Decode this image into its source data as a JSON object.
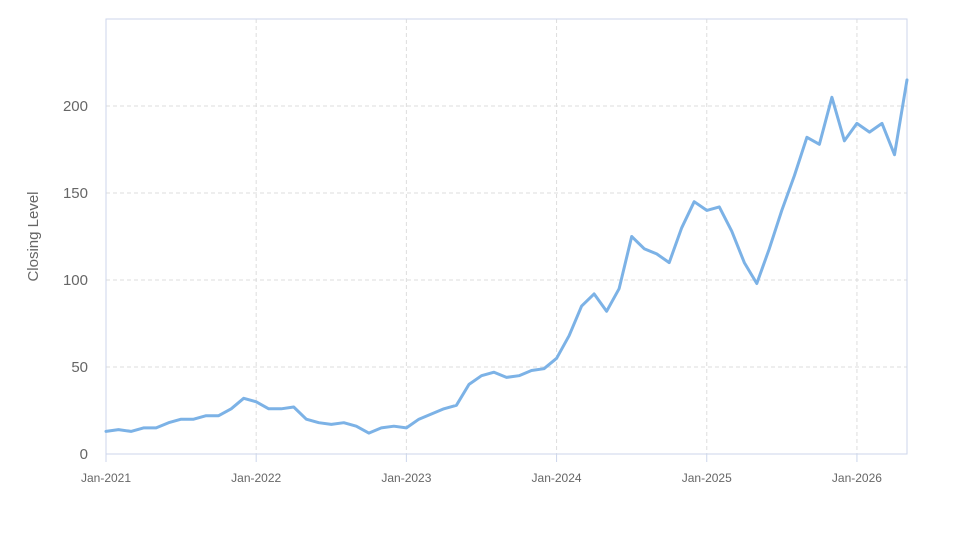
{
  "chart_data": {
    "type": "line",
    "title": "",
    "xlabel": "",
    "ylabel": "Closing Level",
    "x_ticks": [
      "Jan-2021",
      "Jan-2022",
      "Jan-2023",
      "Jan-2024",
      "Jan-2025",
      "Jan-2026"
    ],
    "y_ticks": [
      "0",
      "50",
      "100",
      "150",
      "200"
    ],
    "xlim": [
      "2021-01",
      "2026-05"
    ],
    "ylim": [
      0,
      250
    ],
    "grid": true,
    "legend": "none",
    "colors": {
      "line": "#7cb2e6",
      "grid": "#dddddd",
      "frame": "#ccd6eb"
    },
    "series": [
      {
        "x": [
          "2021-01",
          "2021-02",
          "2021-03",
          "2021-04",
          "2021-05",
          "2021-06",
          "2021-07",
          "2021-08",
          "2021-09",
          "2021-10",
          "2021-11",
          "2021-12",
          "2022-01",
          "2022-02",
          "2022-03",
          "2022-04",
          "2022-05",
          "2022-06",
          "2022-07",
          "2022-08",
          "2022-09",
          "2022-10",
          "2022-11",
          "2022-12",
          "2023-01",
          "2023-02",
          "2023-03",
          "2023-04",
          "2023-05",
          "2023-06",
          "2023-07",
          "2023-08",
          "2023-09",
          "2023-10",
          "2023-11",
          "2023-12",
          "2024-01",
          "2024-02",
          "2024-03",
          "2024-04",
          "2024-05",
          "2024-06",
          "2024-07",
          "2024-08",
          "2024-09",
          "2024-10",
          "2024-11",
          "2024-12",
          "2025-01",
          "2025-02",
          "2025-03",
          "2025-04",
          "2025-05",
          "2025-06",
          "2025-07",
          "2025-08",
          "2025-09",
          "2025-10",
          "2025-11",
          "2025-12",
          "2026-01",
          "2026-02",
          "2026-03",
          "2026-04",
          "2026-05"
        ],
        "values": [
          13,
          14,
          13,
          15,
          15,
          18,
          20,
          20,
          22,
          22,
          26,
          32,
          30,
          26,
          26,
          27,
          20,
          18,
          17,
          18,
          16,
          12,
          15,
          16,
          15,
          20,
          23,
          26,
          28,
          40,
          45,
          47,
          44,
          45,
          48,
          49,
          55,
          68,
          85,
          92,
          82,
          95,
          125,
          118,
          115,
          110,
          130,
          145,
          140,
          142,
          128,
          110,
          98,
          118,
          140,
          160,
          182,
          178,
          205,
          180,
          190,
          185,
          190,
          172,
          215
        ]
      }
    ]
  }
}
